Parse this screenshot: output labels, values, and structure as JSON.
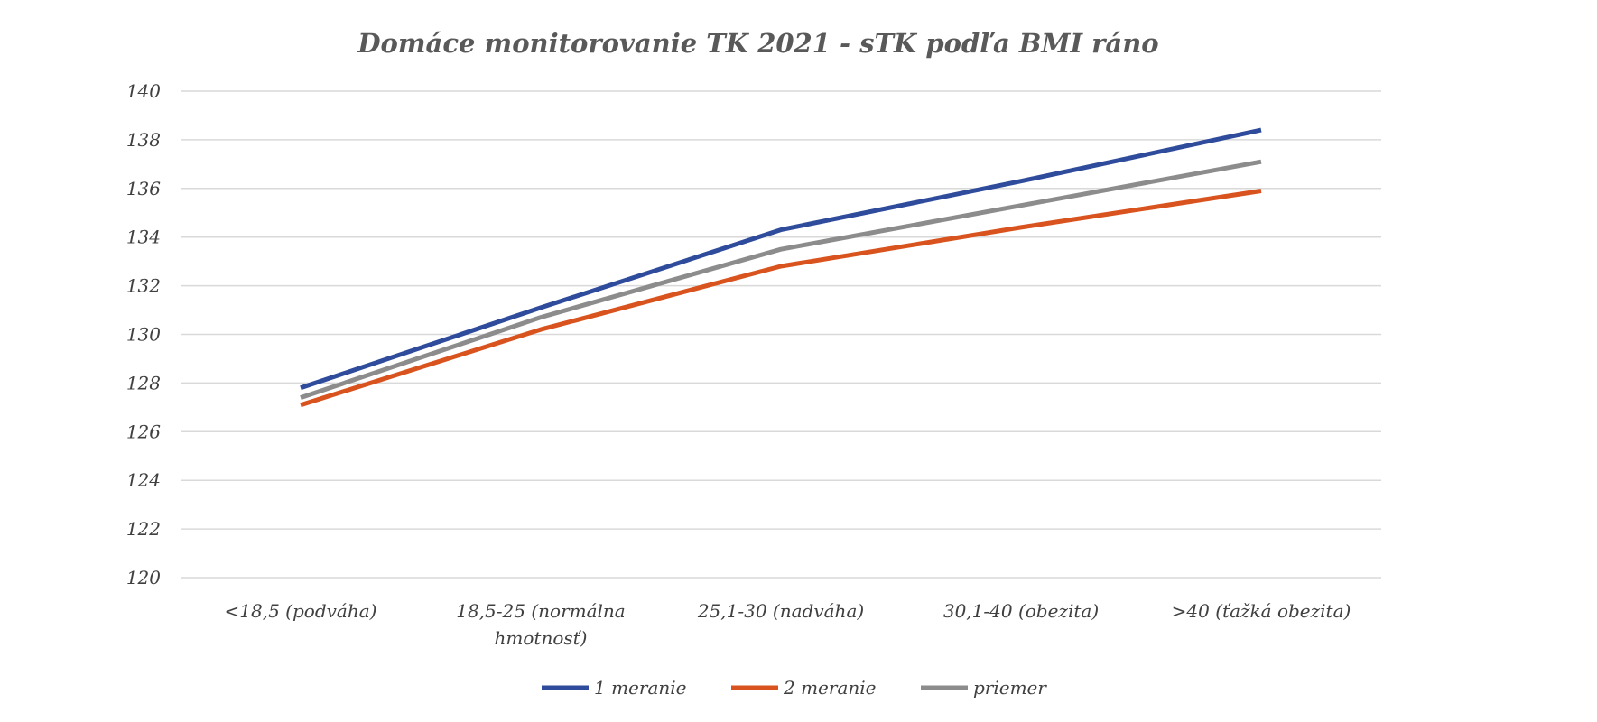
{
  "chart_data": {
    "type": "line",
    "title": "Domáce monitorovanie TK 2021 - sTK podľa BMI ráno",
    "xlabel": "",
    "ylabel": "",
    "categories": [
      "<18,5 (podváha)",
      "18,5-25 (normálna hmotnosť)",
      "25,1-30 (nadváha)",
      "30,1-40 (obezita)",
      ">40 (ťažká obezita)"
    ],
    "category_lines": [
      [
        "<18,5 (podváha)"
      ],
      [
        "18,5-25 (normálna",
        "hmotnosť)"
      ],
      [
        "25,1-30 (nadváha)"
      ],
      [
        "30,1-40 (obezita)"
      ],
      [
        ">40 (ťažká obezita)"
      ]
    ],
    "ylim": [
      120,
      140
    ],
    "ytick_step": 2,
    "grid": true,
    "legend_position": "bottom",
    "series": [
      {
        "name": "1 meranie",
        "color": "#2f4b9b",
        "values": [
          127.8,
          131.1,
          134.3,
          136.3,
          138.4
        ]
      },
      {
        "name": "2 meranie",
        "color": "#d9531e",
        "values": [
          127.1,
          130.2,
          132.8,
          134.4,
          135.9
        ]
      },
      {
        "name": "priemer",
        "color": "#8c8c8c",
        "values": [
          127.4,
          130.7,
          133.5,
          135.3,
          137.1
        ]
      }
    ]
  }
}
